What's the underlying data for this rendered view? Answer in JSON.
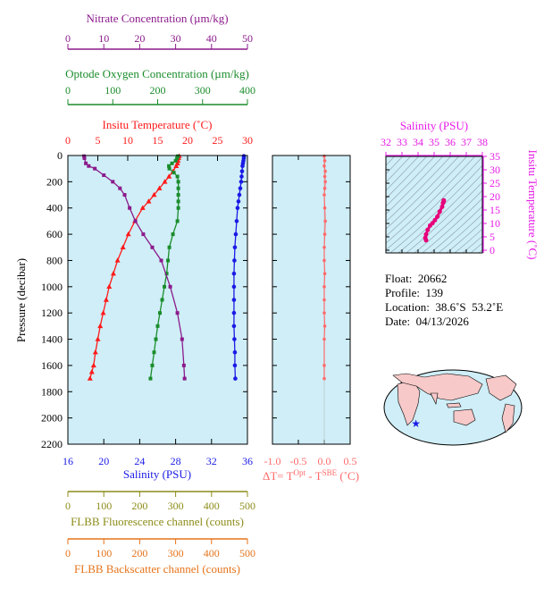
{
  "colors": {
    "nitrate": "#8b1a8b",
    "oxygen": "#1a8c2b",
    "temperature": "#ff1a1a",
    "salinity": "#1a1ae6",
    "delta_t": "#ff6a6a",
    "ts_axis": "#e61ae6",
    "ts_curve": "#e6007a",
    "fluorescence": "#8c8c1a",
    "backscatter": "#e6731a",
    "panel_bg": "#cfeef7",
    "ts_bg": "#cfeef7"
  },
  "meta": {
    "float_label": "Float:",
    "float_value": "20662",
    "profile_label": "Profile:",
    "profile_value": "139",
    "location_label": "Location:",
    "location_value": "38.6˚S  53.2˚E",
    "date_label": "Date:",
    "date_value": "04/13/2026"
  },
  "map": {
    "marker_lon": 53.2,
    "marker_lat": -38.6,
    "marker_symbol": "★"
  },
  "chart_data": [
    {
      "type": "line",
      "name": "profile-panel",
      "ylabel": "Pressure (decibar)",
      "ylim": [
        2200,
        0
      ],
      "yticks": [
        0,
        200,
        400,
        600,
        800,
        1000,
        1200,
        1400,
        1600,
        1800,
        2000,
        2200
      ],
      "axes": {
        "temperature": {
          "label": "Insitu Temperature (˚C)",
          "lim": [
            0,
            30
          ],
          "ticks": [
            0,
            5,
            10,
            15,
            20,
            25,
            30
          ]
        },
        "salinity": {
          "label": "Salinity (PSU)",
          "lim": [
            16,
            36
          ],
          "ticks": [
            16,
            20,
            24,
            28,
            32,
            36
          ]
        },
        "oxygen": {
          "label": "Optode Oxygen Concentration (µm/kg)",
          "lim": [
            0,
            400
          ],
          "ticks": [
            0,
            100,
            200,
            300,
            400
          ]
        },
        "nitrate": {
          "label": "Nitrate Concentration (µm/kg)",
          "lim": [
            0,
            50
          ],
          "ticks": [
            0,
            10,
            20,
            30,
            40,
            50
          ]
        },
        "fluorescence": {
          "label": "FLBB Fluorescence channel (counts)",
          "lim": [
            0,
            500
          ],
          "ticks": [
            0,
            100,
            200,
            300,
            400,
            500
          ]
        },
        "backscatter": {
          "label": "FLBB Backscatter channel (counts)",
          "lim": [
            0,
            500
          ],
          "ticks": [
            0,
            100,
            200,
            300,
            400,
            500
          ]
        }
      },
      "series": [
        {
          "name": "Insitu Temperature",
          "axis": "temperature",
          "marker": "triangle",
          "x": [
            18.6,
            18.5,
            18.4,
            18.3,
            18.1,
            17.6,
            16.9,
            16.2,
            15.3,
            14.4,
            13.5,
            12.5,
            11.2,
            10.1,
            9.2,
            8.3,
            7.6,
            6.9,
            6.4,
            5.9,
            5.4,
            5.0,
            4.6,
            4.3,
            4.0,
            3.7
          ],
          "y": [
            5,
            20,
            40,
            60,
            80,
            120,
            160,
            200,
            250,
            300,
            350,
            400,
            500,
            600,
            700,
            800,
            900,
            1000,
            1100,
            1200,
            1300,
            1400,
            1500,
            1600,
            1650,
            1700
          ]
        },
        {
          "name": "Salinity",
          "axis": "salinity",
          "marker": "circle",
          "x": [
            35.6,
            35.6,
            35.55,
            35.5,
            35.45,
            35.4,
            35.35,
            35.3,
            35.2,
            35.1,
            35.0,
            34.9,
            34.8,
            34.7,
            34.6,
            34.55,
            34.5,
            34.5,
            34.5,
            34.5,
            34.5,
            34.55,
            34.6,
            34.6,
            34.65
          ],
          "y": [
            5,
            20,
            40,
            60,
            80,
            120,
            160,
            200,
            250,
            300,
            350,
            400,
            500,
            600,
            700,
            800,
            900,
            1000,
            1100,
            1200,
            1300,
            1400,
            1500,
            1600,
            1700
          ]
        },
        {
          "name": "Optode Oxygen",
          "axis": "oxygen",
          "marker": "square",
          "x": [
            245,
            243,
            240,
            232,
            225,
            226,
            236,
            244,
            246,
            246,
            246,
            246,
            246,
            244,
            234,
            226,
            223,
            220,
            215,
            210,
            205,
            200,
            196,
            192,
            188,
            184
          ],
          "y": [
            5,
            20,
            40,
            60,
            80,
            100,
            130,
            160,
            200,
            250,
            300,
            350,
            400,
            500,
            600,
            700,
            800,
            900,
            1000,
            1100,
            1200,
            1300,
            1400,
            1500,
            1600,
            1700
          ]
        },
        {
          "name": "Nitrate",
          "axis": "nitrate",
          "marker": "square",
          "x": [
            4.5,
            4.6,
            5.0,
            5.8,
            7.5,
            10.0,
            12.5,
            14.5,
            15.8,
            17.2,
            18.8,
            21.0,
            23.5,
            26.0,
            28.5,
            30.5,
            31.8,
            32.3,
            32.5
          ],
          "y": [
            5,
            20,
            60,
            80,
            100,
            150,
            200,
            250,
            300,
            400,
            500,
            600,
            700,
            800,
            1000,
            1200,
            1400,
            1600,
            1700
          ]
        }
      ]
    },
    {
      "type": "line",
      "name": "delta-t-panel",
      "xlabel_main": "ΔT= T",
      "xlabel_sup1": "Opt",
      "xlabel_mid": " - T",
      "xlabel_sup2": "SBE",
      "xlabel_end": " (˚C)",
      "xlim": [
        -1.0,
        0.5
      ],
      "xticks": [
        -1.0,
        -0.5,
        0.0,
        0.5
      ],
      "xticklabels": [
        "-1.0",
        "-0.5",
        "0.0",
        "0.5"
      ],
      "ylim": [
        2200,
        0
      ],
      "series": [
        {
          "name": "delta T",
          "marker": "circle",
          "x": [
            0.0,
            0.01,
            0.0,
            0.02,
            0.01,
            0.02,
            0.01,
            0.0,
            0.01,
            0.02,
            0.01,
            0.0,
            0.0,
            0.01,
            0.0,
            0.0,
            0.0,
            0.01,
            0.0,
            0.0,
            0.0
          ],
          "y": [
            5,
            40,
            80,
            120,
            160,
            200,
            250,
            300,
            400,
            500,
            600,
            700,
            800,
            900,
            1000,
            1100,
            1200,
            1300,
            1400,
            1600,
            1700
          ]
        }
      ]
    },
    {
      "type": "line",
      "name": "ts-diagram",
      "xlabel": "Salinity (PSU)",
      "ylabel": "Insitu Temperature (˚C)",
      "xlim": [
        32,
        38
      ],
      "xticks": [
        32,
        33,
        34,
        35,
        36,
        37,
        38
      ],
      "ylim": [
        -1,
        35
      ],
      "yticks": [
        0,
        5,
        10,
        15,
        20,
        25,
        30,
        35
      ],
      "series": [
        {
          "name": "T-S profile",
          "x": [
            34.5,
            34.45,
            34.5,
            34.6,
            34.75,
            34.9,
            35.05,
            35.2,
            35.35,
            35.5,
            35.55,
            35.6,
            35.6
          ],
          "y": [
            3.7,
            4.6,
            5.9,
            7.6,
            9.2,
            10.1,
            11.2,
            12.5,
            14.4,
            16.2,
            17.6,
            18.3,
            18.6
          ]
        }
      ]
    }
  ]
}
